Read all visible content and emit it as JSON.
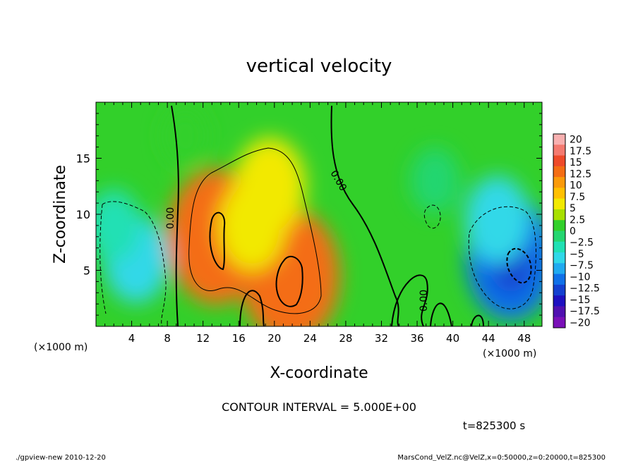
{
  "chart_data": {
    "type": "heatmap",
    "title": "vertical velocity",
    "xlabel": "X-coordinate",
    "ylabel": "Z-coordinate",
    "x_unit_left": "(×1000 m)",
    "x_unit_right": "(×1000 m)",
    "xlim": [
      0,
      50
    ],
    "ylim": [
      0,
      20
    ],
    "x_ticks": [
      4,
      8,
      12,
      16,
      20,
      24,
      28,
      32,
      36,
      40,
      44,
      48
    ],
    "y_ticks": [
      5,
      10,
      15
    ],
    "contour_interval_text": "CONTOUR INTERVAL = 5.000E+00",
    "time_text": "t=825300 s",
    "contour_labels": [
      {
        "text": "0.00",
        "x": 8.5,
        "z": 10.0
      },
      {
        "text": "0.00",
        "x": 27.0,
        "z": 12.5
      },
      {
        "text": "0.00",
        "x": 36.5,
        "z": 2.3
      }
    ],
    "colorbar": {
      "labels": [
        "20",
        "17.5",
        "15",
        "12.5",
        "10",
        "7.5",
        "5",
        "2.5",
        "0",
        "−2.5",
        "−5",
        "−7.5",
        "−10",
        "−12.5",
        "−15",
        "−17.5",
        "−20"
      ],
      "colors": [
        "#f8b0b0",
        "#f47a70",
        "#ee4a2a",
        "#f46d14",
        "#fa9a0a",
        "#ffc000",
        "#f2e900",
        "#a8e000",
        "#32d02a",
        "#24d670",
        "#20e0b4",
        "#30d8e8",
        "#20aaf0",
        "#1070e8",
        "#1440d0",
        "#1e10c0",
        "#5010b0",
        "#7a10b8"
      ],
      "vmin": -20,
      "vmax": 20
    },
    "cells": [
      {
        "x": 10,
        "z": 17,
        "w": 0.6
      },
      {
        "x": 13.5,
        "z": 8,
        "w": 12.5
      },
      {
        "x": 21.8,
        "z": 4.5,
        "w": 12.5
      },
      {
        "x": 19.5,
        "z": 12.5,
        "w": 6.5
      },
      {
        "x": 17.5,
        "z": 9,
        "w": 5.5
      },
      {
        "x": 4.5,
        "z": 6,
        "w": -5
      },
      {
        "x": 2,
        "z": 9,
        "w": -2.5
      },
      {
        "x": 38,
        "z": 13,
        "w": -1.5
      },
      {
        "x": 46.5,
        "z": 6,
        "w": -10.5
      },
      {
        "x": 45,
        "z": 9.5,
        "w": -5
      }
    ]
  },
  "footer": {
    "left": "./gpview-new   2010-12-20",
    "right": "MarsCond_VelZ.nc@VelZ,x=0:50000,z=0:20000,t=825300"
  }
}
